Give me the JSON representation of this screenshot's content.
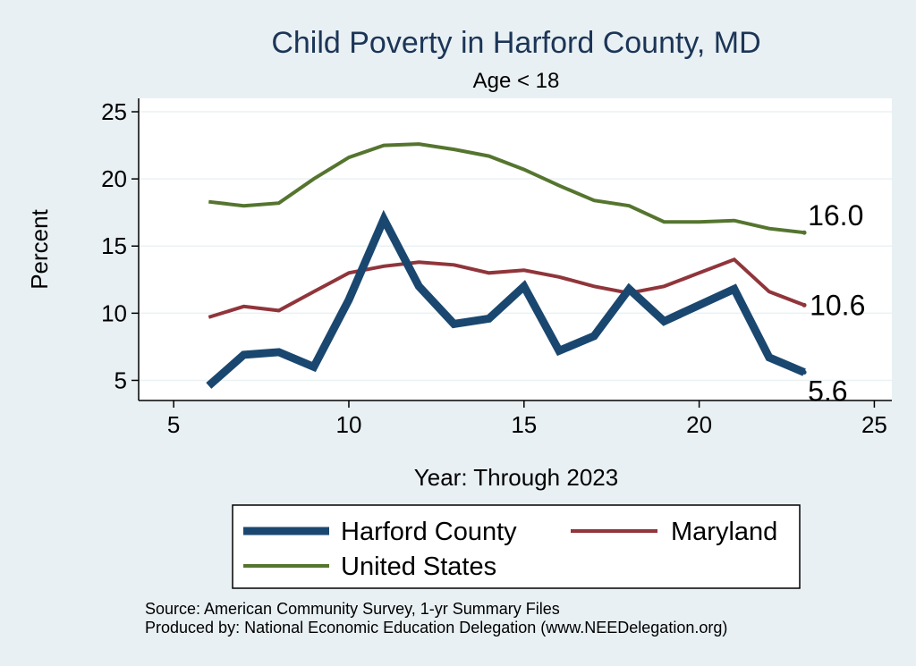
{
  "chart_data": {
    "type": "line",
    "title": "Child Poverty in Harford County, MD",
    "subtitle": "Age < 18",
    "xlabel": "Year: Through 2023",
    "ylabel": "Percent",
    "xlim": [
      4,
      25.5
    ],
    "ylim": [
      3.5,
      26
    ],
    "xticks": [
      5,
      10,
      15,
      20,
      25
    ],
    "yticks": [
      5,
      10,
      15,
      20,
      25
    ],
    "grid": true,
    "legend_position": "bottom",
    "series": [
      {
        "name": "Harford County",
        "color": "#1a476f",
        "width": 9,
        "x": [
          6,
          7,
          8,
          9,
          10,
          11,
          12,
          13,
          14,
          15,
          16,
          17,
          18,
          19,
          20,
          21,
          22,
          23
        ],
        "y": [
          4.6,
          6.9,
          7.1,
          6.0,
          11.0,
          17.0,
          12.0,
          9.2,
          9.6,
          12.0,
          7.2,
          8.3,
          11.8,
          9.4,
          10.6,
          11.8,
          6.7,
          5.6
        ],
        "end_label": "5.6"
      },
      {
        "name": "Maryland",
        "color": "#90353b",
        "width": 4,
        "x": [
          6,
          7,
          8,
          9,
          10,
          11,
          12,
          13,
          14,
          15,
          16,
          17,
          18,
          19,
          20,
          21,
          22,
          23
        ],
        "y": [
          9.7,
          10.5,
          10.2,
          11.6,
          13.0,
          13.5,
          13.8,
          13.6,
          13.0,
          13.2,
          12.7,
          12.0,
          11.5,
          12.0,
          13.0,
          14.0,
          11.6,
          10.6
        ],
        "end_label": "10.6"
      },
      {
        "name": "United States",
        "color": "#55752f",
        "width": 4,
        "x": [
          6,
          7,
          8,
          9,
          10,
          11,
          12,
          13,
          14,
          15,
          16,
          17,
          18,
          19,
          20,
          21,
          22,
          23
        ],
        "y": [
          18.3,
          18.0,
          18.2,
          20.0,
          21.6,
          22.5,
          22.6,
          22.2,
          21.7,
          20.7,
          19.5,
          18.4,
          18.0,
          16.8,
          16.8,
          16.9,
          16.3,
          16.0
        ],
        "end_label": "16.0"
      }
    ]
  },
  "notes": {
    "source": "Source: American Community Survey, 1-yr Summary Files",
    "producer": "Produced by: National Economic Education Delegation (www.NEEDelegation.org)"
  }
}
